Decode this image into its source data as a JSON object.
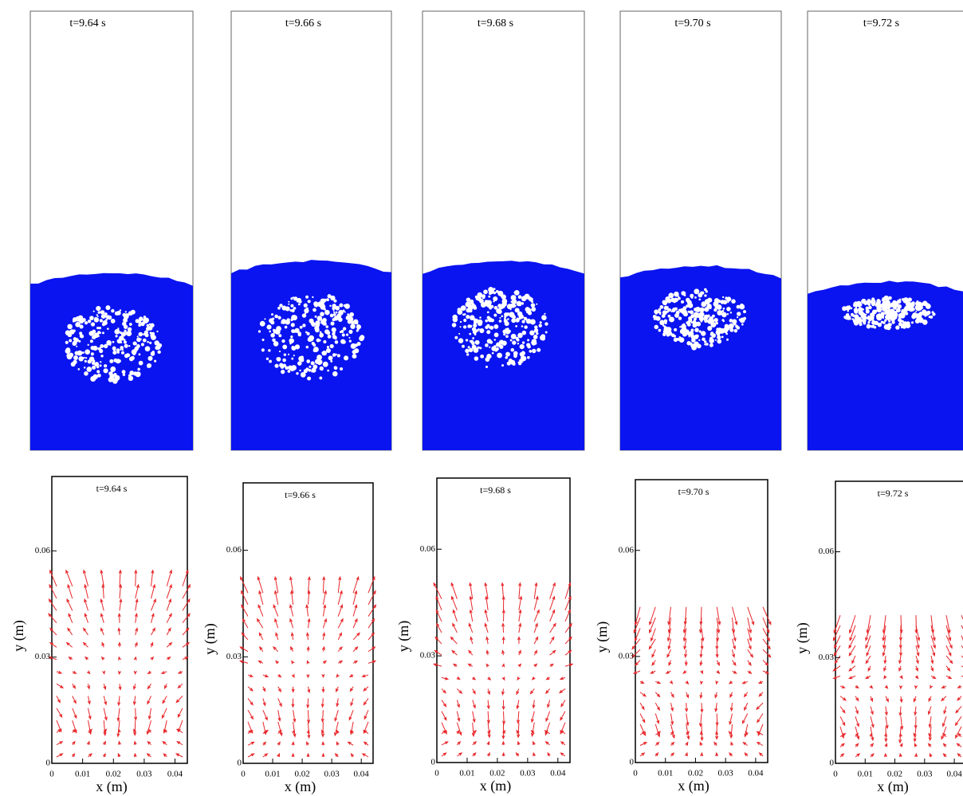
{
  "snapshots": [
    {
      "label": "t=9.64 s"
    },
    {
      "label": "t=9.66 s"
    },
    {
      "label": "t=9.68 s"
    },
    {
      "label": "t=9.70 s"
    },
    {
      "label": "t=9.72 s"
    }
  ],
  "velocity_plots": [
    {
      "title": "t=9.64 s",
      "xlabel": "x (m)",
      "ylabel": "y (m)",
      "xlim": [
        0,
        0.044
      ],
      "ylim": [
        0,
        0.081
      ],
      "xticks": [
        0,
        0.01,
        0.02,
        0.03,
        0.04
      ],
      "yticks": [
        0,
        0.03,
        0.06
      ]
    },
    {
      "title": "t=9.66 s",
      "xlabel": "x (m)",
      "ylabel": "y (m)",
      "xlim": [
        0,
        0.044
      ],
      "ylim": [
        0,
        0.079
      ],
      "xticks": [
        0,
        0.01,
        0.02,
        0.03,
        0.04
      ],
      "yticks": [
        0,
        0.03,
        0.06
      ]
    },
    {
      "title": "t=9.68 s",
      "xlabel": "x (m)",
      "ylabel": "y (m)",
      "xlim": [
        0,
        0.044
      ],
      "ylim": [
        0,
        0.08
      ],
      "xticks": [
        0,
        0.01,
        0.02,
        0.03,
        0.04
      ],
      "yticks": [
        0,
        0.03,
        0.06
      ]
    },
    {
      "title": "t=9.70 s",
      "xlabel": "x (m)",
      "ylabel": "y (m)",
      "xlim": [
        0,
        0.044
      ],
      "ylim": [
        0,
        0.08
      ],
      "xticks": [
        0,
        0.01,
        0.02,
        0.03,
        0.04
      ],
      "yticks": [
        0,
        0.03,
        0.06
      ]
    },
    {
      "title": "t=9.72 s",
      "xlabel": "x (m)",
      "ylabel": "y (m)",
      "xlim": [
        0,
        0.044
      ],
      "ylim": [
        0,
        0.08
      ],
      "xticks": [
        0,
        0.01,
        0.02,
        0.03,
        0.04
      ],
      "yticks": [
        0,
        0.03,
        0.06
      ]
    }
  ]
}
